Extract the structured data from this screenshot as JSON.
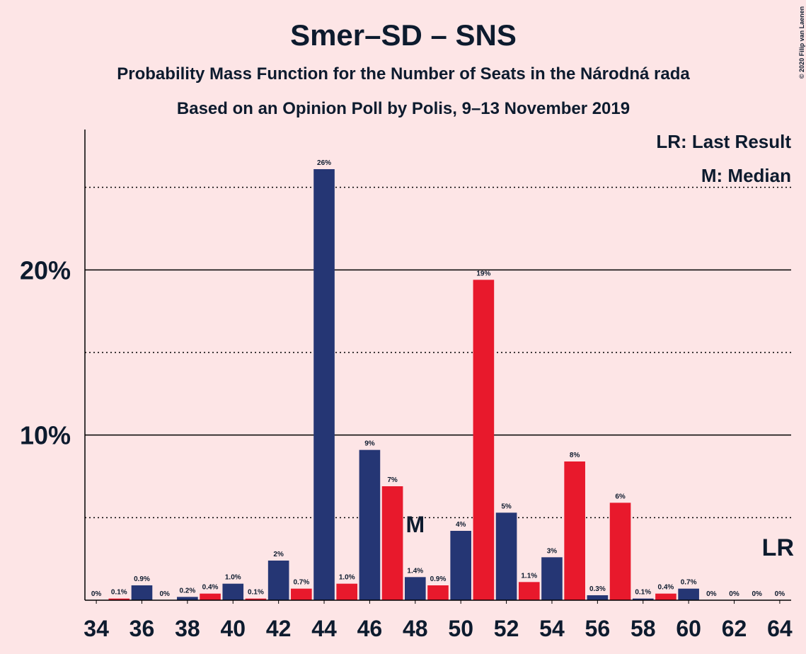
{
  "chart_data": {
    "type": "bar",
    "title": "Smer–SD – SNS",
    "subtitle": "Probability Mass Function for the Number of Seats in the Národná rada",
    "subtitle2": "Based on an Opinion Poll by Polis, 9–13 November 2019",
    "copyright": "© 2020 Filip van Laenen",
    "legend": [
      "LR: Last Result",
      "M: Median"
    ],
    "x": [
      34,
      35,
      36,
      37,
      38,
      39,
      40,
      41,
      42,
      43,
      44,
      45,
      46,
      47,
      48,
      49,
      50,
      51,
      52,
      53,
      54,
      55,
      56,
      57,
      58,
      59,
      60,
      61,
      62,
      63,
      64
    ],
    "values": [
      0,
      0.1,
      0.9,
      0,
      0.2,
      0.4,
      1.0,
      0.1,
      2.4,
      0.7,
      26.1,
      1.0,
      9.1,
      6.9,
      1.4,
      0.9,
      4.2,
      19.4,
      5.3,
      1.1,
      2.6,
      8.4,
      0.3,
      5.9,
      0.1,
      0.4,
      0.7,
      0,
      0,
      0,
      0
    ],
    "value_labels": [
      "0%",
      "0.1%",
      "0.9%",
      "0%",
      "0.2%",
      "0.4%",
      "1.0%",
      "0.1%",
      "2%",
      "0.7%",
      "26%",
      "1.0%",
      "9%",
      "7%",
      "1.4%",
      "0.9%",
      "4%",
      "19%",
      "5%",
      "1.1%",
      "3%",
      "8%",
      "0.3%",
      "6%",
      "0.1%",
      "0.4%",
      "0.7%",
      "0%",
      "0%",
      "0%",
      "0%"
    ],
    "colors": [
      "#253674",
      "#e8192c"
    ],
    "xlim": [
      33.5,
      64.5
    ],
    "xticks": [
      34,
      36,
      38,
      40,
      42,
      44,
      46,
      48,
      50,
      52,
      54,
      56,
      58,
      60,
      62,
      64
    ],
    "ylim": [
      0,
      28.5
    ],
    "yticks": [
      {
        "value": 10,
        "label": "10%"
      },
      {
        "value": 20,
        "label": "20%"
      }
    ],
    "minor_gridlines": [
      5,
      15,
      25
    ],
    "annotations": [
      {
        "text": "M",
        "x": 48
      },
      {
        "text": "LR",
        "x": 64
      }
    ]
  }
}
